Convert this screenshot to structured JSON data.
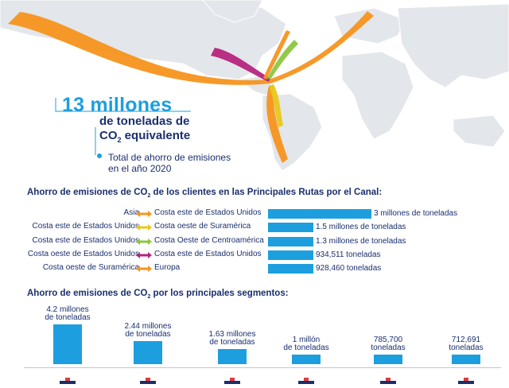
{
  "headline": {
    "amount": "13 millones",
    "unit_line1": "de toneladas de",
    "unit_line2_pre": "CO",
    "unit_line2_sub": "2",
    "unit_line2_post": " equivalente",
    "total_line1": "Total de ahorro de emisiones",
    "total_line2": "en el año 2020"
  },
  "colors": {
    "accent_blue": "#1d9fdf",
    "navy": "#1a2f6d",
    "orange": "#f7931e",
    "yellow": "#e9c81a",
    "green": "#8cc63f",
    "magenta": "#b5257e",
    "map_gray": "#e3e6ea"
  },
  "routes_title": {
    "pre": "Ahorro de emisiones de CO",
    "sub": "2",
    "post": " de los clientes en las Principales Rutas por el Canal:"
  },
  "segments_title": {
    "pre": "Ahorro de emisiones de CO",
    "sub": "2",
    "post": " por los principales segmentos:"
  },
  "chart_data": [
    {
      "type": "bar",
      "orientation": "horizontal",
      "categories": [
        "Asia – Costa este de Estados Unidos",
        "Costa este de Estados Unidos – Costa oeste de Suramérica",
        "Costa este de Estados Unidos – Costa Oeste de Centroamérica",
        "Costa oeste de Estados Unidos – Costa este de Estados Unidos",
        "Costa oeste de Suramérica – Europa"
      ],
      "routes": [
        {
          "from": "Asia",
          "to": "Costa este de Estados Unidos",
          "arrow_color": "#f7931e",
          "value": 3000000,
          "label": "3 millones de toneladas"
        },
        {
          "from": "Costa este de Estados Unidos",
          "to": "Costa oeste de Suramérica",
          "arrow_color": "#e9c81a",
          "value": 1500000,
          "label": "1.5 millones de toneladas"
        },
        {
          "from": "Costa este de Estados Unidos",
          "to": "Costa Oeste de Centroamérica",
          "arrow_color": "#8cc63f",
          "value": 1300000,
          "label": "1.3 millones de toneladas"
        },
        {
          "from": "Costa oeste de Estados Unidos",
          "to": "Costa este de Estados Unidos",
          "arrow_color": "#b5257e",
          "value": 934511,
          "label": "934,511 toneladas"
        },
        {
          "from": "Costa oeste de Suramérica",
          "to": "Europa",
          "arrow_color": "#f7931e",
          "value": 928460,
          "label": "928,460 toneladas"
        }
      ],
      "values": [
        3000000,
        1500000,
        1300000,
        934511,
        928460
      ],
      "xlim": [
        0,
        3000000
      ]
    },
    {
      "type": "bar",
      "orientation": "vertical",
      "categories": [
        "",
        "",
        "",
        "",
        "",
        ""
      ],
      "values": [
        4200000,
        2440000,
        1630000,
        1000000,
        785700,
        712691
      ],
      "labels": [
        [
          "4.2 millones",
          "de toneladas"
        ],
        [
          "2.44 millones",
          "de toneladas"
        ],
        [
          "1.63 millones",
          "de toneladas"
        ],
        [
          "1 millón",
          "de toneladas"
        ],
        [
          "785,700",
          "toneladas"
        ],
        [
          "712,691",
          "toneladas"
        ]
      ],
      "icons": [
        "container-ship-icon",
        "tanker-icon",
        "bulk-carrier-icon",
        "lpg-carrier-icon",
        "car-carrier-icon",
        "reefer-icon"
      ],
      "ylim": [
        0,
        4200000
      ]
    }
  ]
}
